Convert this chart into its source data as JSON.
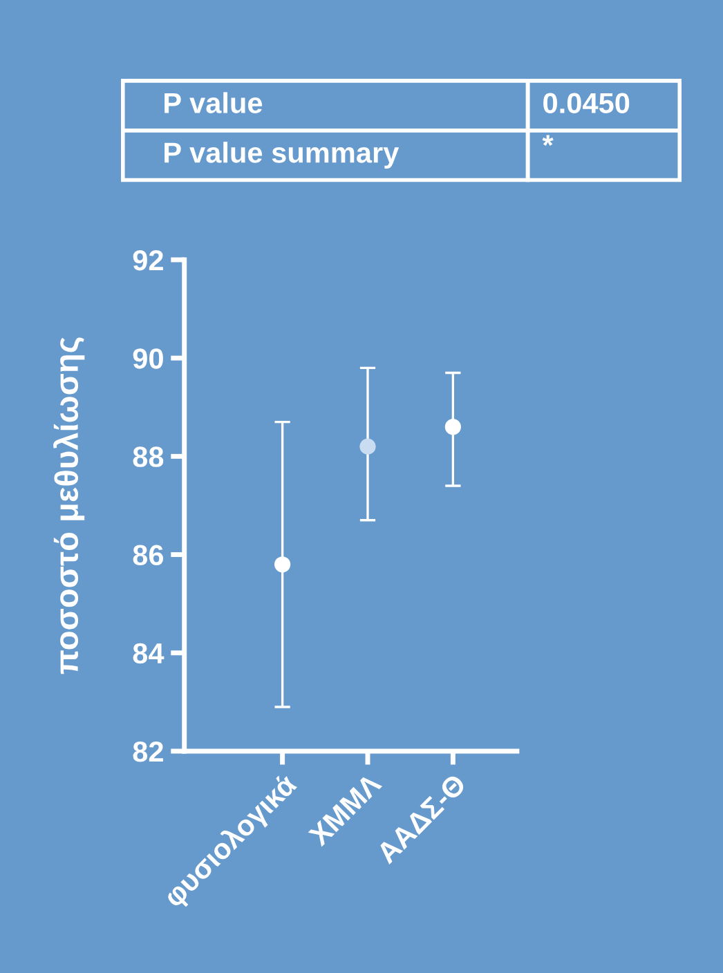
{
  "chart_data": {
    "type": "scatter",
    "ylabel": "ποσοστό μεθυλίωσης",
    "categories": [
      "φυσιολογικά",
      "ΧΜΜΛ",
      "ΑΑΔΣ-Θ"
    ],
    "values": [
      85.8,
      88.2,
      88.6
    ],
    "errors": [
      [
        82.9,
        88.7
      ],
      [
        86.7,
        89.8
      ],
      [
        87.4,
        89.7
      ]
    ],
    "colors": [
      "#ffffff",
      "#c9dcf2",
      "#ffffff"
    ],
    "marker": "circle",
    "ylim": [
      82,
      92
    ],
    "yticks": [
      82,
      84,
      86,
      88,
      90,
      92
    ],
    "annotations": [
      "P value",
      "0.0450",
      "P value summary",
      "*"
    ]
  }
}
